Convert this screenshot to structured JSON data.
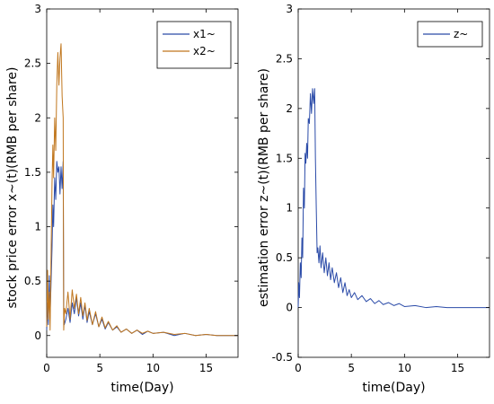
{
  "chart_data": [
    {
      "type": "line",
      "xlabel": "time(Day)",
      "ylabel": "stock price error x~(t)(RMB per share)",
      "xlim": [
        0,
        18
      ],
      "ylim": [
        -0.2,
        3
      ],
      "xticks": [
        "0",
        "5",
        "10",
        "15"
      ],
      "yticks": [
        "0",
        "0.5",
        "1",
        "1.5",
        "2",
        "2.5",
        "3"
      ],
      "legend_position": "top-right",
      "series": [
        {
          "name": "x1~",
          "color": "#2b4ba8",
          "points": [
            [
              0,
              0.05
            ],
            [
              0.08,
              0.3
            ],
            [
              0.15,
              0.1
            ],
            [
              0.25,
              0.55
            ],
            [
              0.32,
              0.2
            ],
            [
              0.4,
              0.45
            ],
            [
              0.5,
              0.8
            ],
            [
              0.58,
              1.2
            ],
            [
              0.65,
              1.0
            ],
            [
              0.75,
              1.45
            ],
            [
              0.85,
              1.25
            ],
            [
              0.95,
              1.6
            ],
            [
              1.05,
              1.5
            ],
            [
              1.15,
              1.55
            ],
            [
              1.25,
              1.3
            ],
            [
              1.35,
              1.55
            ],
            [
              1.45,
              1.35
            ],
            [
              1.55,
              1.6
            ],
            [
              1.6,
              0.2
            ],
            [
              1.65,
              0.1
            ],
            [
              1.8,
              0.15
            ],
            [
              2.0,
              0.25
            ],
            [
              2.2,
              0.12
            ],
            [
              2.4,
              0.3
            ],
            [
              2.6,
              0.2
            ],
            [
              2.8,
              0.35
            ],
            [
              3.0,
              0.18
            ],
            [
              3.2,
              0.3
            ],
            [
              3.4,
              0.15
            ],
            [
              3.6,
              0.28
            ],
            [
              3.8,
              0.12
            ],
            [
              4.0,
              0.22
            ],
            [
              4.3,
              0.1
            ],
            [
              4.6,
              0.2
            ],
            [
              4.9,
              0.08
            ],
            [
              5.2,
              0.15
            ],
            [
              5.5,
              0.06
            ],
            [
              5.8,
              0.12
            ],
            [
              6.2,
              0.05
            ],
            [
              6.6,
              0.08
            ],
            [
              7.0,
              0.03
            ],
            [
              7.5,
              0.06
            ],
            [
              8.0,
              0.02
            ],
            [
              8.5,
              0.05
            ],
            [
              9.0,
              0.01
            ],
            [
              9.5,
              0.04
            ],
            [
              10,
              0.02
            ],
            [
              11,
              0.03
            ],
            [
              12,
              0.0
            ],
            [
              13,
              0.02
            ],
            [
              14,
              0.0
            ],
            [
              15,
              0.01
            ],
            [
              16,
              0.0
            ],
            [
              17,
              0.0
            ],
            [
              18,
              0.0
            ]
          ]
        },
        {
          "name": "x2~",
          "color": "#c0761d",
          "points": [
            [
              0,
              0.08
            ],
            [
              0.08,
              0.6
            ],
            [
              0.15,
              0.15
            ],
            [
              0.25,
              0.4
            ],
            [
              0.32,
              0.05
            ],
            [
              0.4,
              0.65
            ],
            [
              0.5,
              1.4
            ],
            [
              0.58,
              1.75
            ],
            [
              0.65,
              1.45
            ],
            [
              0.75,
              2.0
            ],
            [
              0.85,
              1.7
            ],
            [
              0.95,
              2.3
            ],
            [
              1.05,
              2.6
            ],
            [
              1.15,
              2.3
            ],
            [
              1.25,
              2.55
            ],
            [
              1.35,
              2.68
            ],
            [
              1.45,
              2.2
            ],
            [
              1.55,
              2.0
            ],
            [
              1.6,
              0.05
            ],
            [
              1.68,
              0.25
            ],
            [
              1.8,
              0.2
            ],
            [
              2.0,
              0.4
            ],
            [
              2.2,
              0.15
            ],
            [
              2.4,
              0.42
            ],
            [
              2.6,
              0.25
            ],
            [
              2.8,
              0.38
            ],
            [
              3.0,
              0.2
            ],
            [
              3.2,
              0.35
            ],
            [
              3.4,
              0.18
            ],
            [
              3.6,
              0.3
            ],
            [
              3.8,
              0.14
            ],
            [
              4.0,
              0.25
            ],
            [
              4.3,
              0.1
            ],
            [
              4.6,
              0.22
            ],
            [
              4.9,
              0.08
            ],
            [
              5.2,
              0.17
            ],
            [
              5.5,
              0.07
            ],
            [
              5.8,
              0.13
            ],
            [
              6.2,
              0.05
            ],
            [
              6.6,
              0.09
            ],
            [
              7.0,
              0.03
            ],
            [
              7.5,
              0.06
            ],
            [
              8.0,
              0.02
            ],
            [
              8.5,
              0.05
            ],
            [
              9.0,
              0.02
            ],
            [
              9.5,
              0.04
            ],
            [
              10,
              0.02
            ],
            [
              11,
              0.03
            ],
            [
              12,
              0.01
            ],
            [
              13,
              0.02
            ],
            [
              14,
              0.0
            ],
            [
              15,
              0.01
            ],
            [
              16,
              0.0
            ],
            [
              17,
              0.0
            ],
            [
              18,
              0.0
            ]
          ]
        }
      ]
    },
    {
      "type": "line",
      "xlabel": "time(Day)",
      "ylabel": "estimation error z~(t)(RMB per share)",
      "xlim": [
        0,
        18
      ],
      "ylim": [
        -0.5,
        3
      ],
      "xticks": [
        "0",
        "5",
        "10",
        "15"
      ],
      "yticks": [
        "-0.5",
        "0",
        "0.5",
        "1",
        "1.5",
        "2",
        "2.5",
        "3"
      ],
      "legend_position": "top-right",
      "series": [
        {
          "name": "z~",
          "color": "#2b4ba8",
          "points": [
            [
              0,
              0.0
            ],
            [
              0.05,
              0.25
            ],
            [
              0.12,
              0.1
            ],
            [
              0.2,
              0.45
            ],
            [
              0.28,
              0.3
            ],
            [
              0.35,
              0.7
            ],
            [
              0.42,
              0.5
            ],
            [
              0.5,
              1.2
            ],
            [
              0.58,
              1.0
            ],
            [
              0.65,
              1.55
            ],
            [
              0.72,
              1.45
            ],
            [
              0.8,
              1.65
            ],
            [
              0.88,
              1.5
            ],
            [
              0.95,
              1.9
            ],
            [
              1.05,
              1.85
            ],
            [
              1.15,
              2.15
            ],
            [
              1.25,
              1.95
            ],
            [
              1.35,
              2.2
            ],
            [
              1.45,
              2.05
            ],
            [
              1.55,
              2.2
            ],
            [
              1.62,
              1.5
            ],
            [
              1.7,
              1.0
            ],
            [
              1.78,
              0.55
            ],
            [
              1.85,
              0.6
            ],
            [
              1.95,
              0.45
            ],
            [
              2.05,
              0.62
            ],
            [
              2.15,
              0.4
            ],
            [
              2.3,
              0.55
            ],
            [
              2.45,
              0.35
            ],
            [
              2.6,
              0.5
            ],
            [
              2.75,
              0.32
            ],
            [
              2.9,
              0.45
            ],
            [
              3.05,
              0.28
            ],
            [
              3.2,
              0.4
            ],
            [
              3.4,
              0.25
            ],
            [
              3.6,
              0.35
            ],
            [
              3.8,
              0.2
            ],
            [
              4.0,
              0.3
            ],
            [
              4.2,
              0.15
            ],
            [
              4.4,
              0.25
            ],
            [
              4.6,
              0.12
            ],
            [
              4.8,
              0.18
            ],
            [
              5.0,
              0.1
            ],
            [
              5.3,
              0.15
            ],
            [
              5.6,
              0.08
            ],
            [
              6.0,
              0.12
            ],
            [
              6.4,
              0.06
            ],
            [
              6.8,
              0.09
            ],
            [
              7.2,
              0.04
            ],
            [
              7.6,
              0.07
            ],
            [
              8.0,
              0.03
            ],
            [
              8.5,
              0.05
            ],
            [
              9.0,
              0.02
            ],
            [
              9.5,
              0.04
            ],
            [
              10,
              0.01
            ],
            [
              11,
              0.02
            ],
            [
              12,
              0.0
            ],
            [
              13,
              0.01
            ],
            [
              14,
              0.0
            ],
            [
              15,
              0.0
            ],
            [
              16,
              0.0
            ],
            [
              17,
              0.0
            ],
            [
              18,
              0.0
            ]
          ]
        }
      ]
    }
  ]
}
